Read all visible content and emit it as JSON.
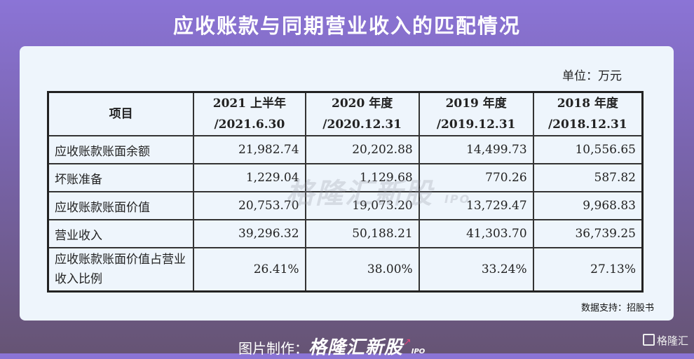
{
  "title": "应收账款与同期营业收入的匹配情况",
  "unit": "单位：万元",
  "table": {
    "headers": [
      {
        "line1": "项目",
        "line2": ""
      },
      {
        "line1": "2021 上半年",
        "line2": "/2021.6.30"
      },
      {
        "line1": "2020 年度",
        "line2": "/2020.12.31"
      },
      {
        "line1": "2019 年度",
        "line2": "/2019.12.31"
      },
      {
        "line1": "2018 年度",
        "line2": "/2018.12.31"
      }
    ],
    "rows": [
      {
        "label": "应收账款账面余额",
        "values": [
          "21,982.74",
          "20,202.88",
          "14,499.73",
          "10,556.65"
        ]
      },
      {
        "label": "坏账准备",
        "values": [
          "1,229.04",
          "1,129.68",
          "770.26",
          "587.82"
        ]
      },
      {
        "label": "应收账款账面价值",
        "values": [
          "20,753.70",
          "19,073.20",
          "13,729.47",
          "9,968.83"
        ]
      },
      {
        "label": "营业收入",
        "values": [
          "39,296.32",
          "50,188.21",
          "41,303.70",
          "36,739.25"
        ]
      },
      {
        "label": "应收账款账面价值占营业收入比例",
        "values": [
          "26.41%",
          "38.00%",
          "33.24%",
          "27.13%"
        ]
      }
    ]
  },
  "watermark": "格隆汇新股 IPO",
  "source": "数据支持：招股书",
  "footer": {
    "prefix": "图片制作：",
    "brand": "格隆汇新股",
    "brand_sub": "IPO"
  },
  "corner_logo": "格隆汇"
}
